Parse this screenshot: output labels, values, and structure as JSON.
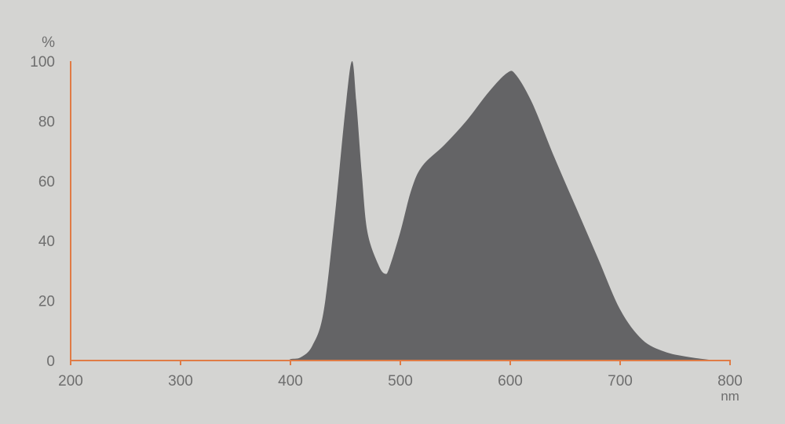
{
  "chart_data": {
    "type": "area",
    "title": "",
    "xlabel": "nm",
    "ylabel": "%",
    "xlim": [
      200,
      800
    ],
    "ylim": [
      0,
      100
    ],
    "xticks": [
      "200",
      "300",
      "400",
      "500",
      "600",
      "700",
      "800"
    ],
    "yticks": [
      "0",
      "20",
      "40",
      "60",
      "80",
      "100"
    ],
    "grid": false,
    "colors": {
      "fill": "#646466",
      "axis": "#e07b45",
      "background": "#d4d4d2",
      "text": "#6e6e6e"
    },
    "x": [
      200,
      380,
      400,
      410,
      420,
      430,
      440,
      450,
      456,
      460,
      465,
      470,
      480,
      486,
      490,
      500,
      510,
      520,
      540,
      560,
      580,
      597,
      605,
      620,
      640,
      660,
      680,
      700,
      720,
      740,
      760,
      780,
      790
    ],
    "y": [
      0,
      0,
      0.5,
      1.2,
      5,
      16,
      47,
      84,
      100,
      86,
      62,
      43,
      32,
      29,
      31,
      43,
      57,
      65,
      72,
      80,
      89.5,
      96,
      95.5,
      86,
      68,
      51,
      34,
      17,
      7,
      3,
      1.3,
      0.3,
      0
    ]
  }
}
